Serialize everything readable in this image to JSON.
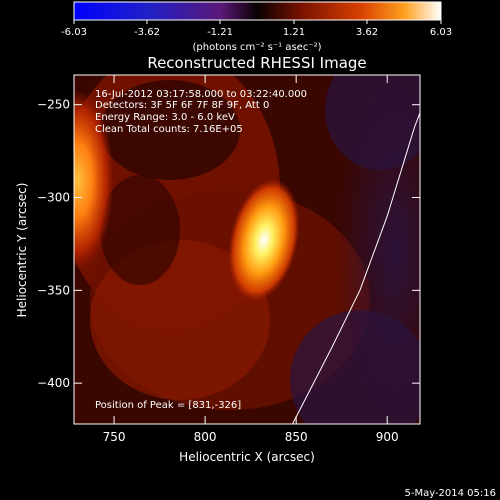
{
  "colorbar": {
    "ticks": [
      "-6.03",
      "-3.62",
      "-1.21",
      "1.21",
      "3.62",
      "6.03"
    ],
    "unit_label": "(photons cm⁻² s⁻¹ asec⁻²)",
    "range": [
      -6.03,
      6.03
    ]
  },
  "annotations": {
    "time_range": "16-Jul-2012 03:17:58.000 to 03:22:40.000",
    "detectors": "Detectors: 3F 5F 6F 7F 8F 9F, Att 0",
    "energy": "Energy Range: 3.0 - 6.0 keV",
    "clean": "Clean     Total counts: 7.16E+05",
    "peak": "Position of Peak = [831,-326]"
  },
  "footer": {
    "date": "5-May-2014 05:16"
  },
  "chart_data": {
    "type": "heatmap",
    "title": "Reconstructed RHESSI Image",
    "xlabel": "Heliocentric X (arcsec)",
    "ylabel": "Heliocentric Y (arcsec)",
    "xlim": [
      728,
      918
    ],
    "ylim": [
      -422,
      -234
    ],
    "x_ticks": [
      750,
      800,
      850,
      900
    ],
    "y_ticks": [
      -250,
      -300,
      -350,
      -400
    ],
    "peak": {
      "x": 831,
      "y": -326,
      "value": 6.03
    },
    "sources": [
      {
        "x": 831,
        "y": -326,
        "sx": 8,
        "sy": 22,
        "amp": 6.03
      },
      {
        "x": 730,
        "y": -295,
        "sx": 9,
        "sy": 30,
        "amp": 4.0
      }
    ],
    "limb": [
      [
        848,
        -422
      ],
      [
        870,
        -380
      ],
      [
        885,
        -350
      ],
      [
        900,
        -310
      ],
      [
        915,
        -262
      ],
      [
        926,
        -234
      ]
    ]
  }
}
